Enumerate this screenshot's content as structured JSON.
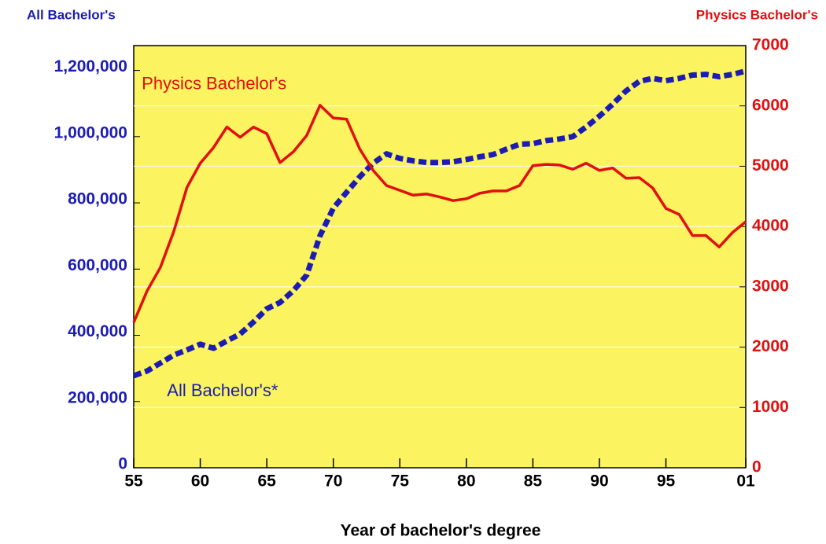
{
  "chart_data": {
    "type": "line",
    "y_title": "All Bachelor's",
    "y2_title": "Physics Bachelor's",
    "x_title": "Year of bachelor's degree",
    "background": "#fbf35f",
    "annotations": [
      {
        "text": "Physics Bachelor's",
        "x": 1955.6,
        "y": 6350,
        "axis": "y2",
        "color": "#e01010"
      },
      {
        "text": "All Bachelor's*",
        "x": 1957.5,
        "y": 230000,
        "axis": "y",
        "color": "#1c1cb4"
      }
    ],
    "x": [
      1955,
      1956,
      1957,
      1958,
      1959,
      1960,
      1961,
      1962,
      1963,
      1964,
      1965,
      1966,
      1967,
      1968,
      1969,
      1970,
      1971,
      1972,
      1973,
      1974,
      1975,
      1976,
      1977,
      1978,
      1979,
      1980,
      1981,
      1982,
      1983,
      1984,
      1985,
      1986,
      1987,
      1988,
      1989,
      1990,
      1991,
      1992,
      1993,
      1994,
      1995,
      1996,
      1997,
      1998,
      1999,
      2000,
      2001
    ],
    "xlim": [
      1955,
      2001
    ],
    "xticks": [
      {
        "value": 1955,
        "label": "55"
      },
      {
        "value": 1960,
        "label": "60"
      },
      {
        "value": 1965,
        "label": "65"
      },
      {
        "value": 1970,
        "label": "70"
      },
      {
        "value": 1975,
        "label": "75"
      },
      {
        "value": 1980,
        "label": "80"
      },
      {
        "value": 1985,
        "label": "85"
      },
      {
        "value": 1990,
        "label": "90"
      },
      {
        "value": 1995,
        "label": "95"
      },
      {
        "value": 2001,
        "label": "01"
      }
    ],
    "ylim": [
      0,
      1275000
    ],
    "yticks": [
      0,
      {
        "value": 200000,
        "label": "200,000"
      },
      {
        "value": 400000,
        "label": "400,000"
      },
      {
        "value": 600000,
        "label": "600,000"
      },
      {
        "value": 800000,
        "label": "800,000"
      },
      {
        "value": 1000000,
        "label": "1,000,000"
      },
      {
        "value": 1200000,
        "label": "1,200,000"
      }
    ],
    "y_color": "#1c1cb4",
    "y2lim": [
      0,
      7000
    ],
    "y2ticks": [
      0,
      1000,
      2000,
      3000,
      4000,
      5000,
      6000,
      7000
    ],
    "y2_color": "#e01010",
    "grid": "y2",
    "series": [
      {
        "name": "All Bachelor's",
        "axis": "y",
        "color": "#1c1cb4",
        "dash": true,
        "values": [
          278000,
          292000,
          316000,
          340000,
          356000,
          373000,
          361000,
          383000,
          404000,
          440000,
          480000,
          499000,
          535000,
          582000,
          701000,
          784000,
          832000,
          879000,
          920000,
          948000,
          934000,
          927000,
          922000,
          922000,
          924000,
          931000,
          939000,
          946000,
          962000,
          977000,
          979000,
          988000,
          993000,
          1000000,
          1029000,
          1062000,
          1098000,
          1138000,
          1167000,
          1176000,
          1169000,
          1176000,
          1186000,
          1188000,
          1181000,
          1188000,
          1198000
        ]
      },
      {
        "name": "Physics Bachelor's",
        "axis": "y2",
        "color": "#e01010",
        "dash": false,
        "values": [
          2410,
          2930,
          3320,
          3910,
          4650,
          5050,
          5310,
          5650,
          5480,
          5650,
          5540,
          5060,
          5240,
          5510,
          6010,
          5800,
          5780,
          5280,
          4930,
          4680,
          4600,
          4520,
          4540,
          4490,
          4430,
          4460,
          4550,
          4590,
          4590,
          4680,
          5010,
          5030,
          5020,
          4950,
          5050,
          4930,
          4970,
          4800,
          4810,
          4640,
          4300,
          4200,
          3850,
          3850,
          3660,
          3900,
          4080
        ]
      }
    ]
  }
}
